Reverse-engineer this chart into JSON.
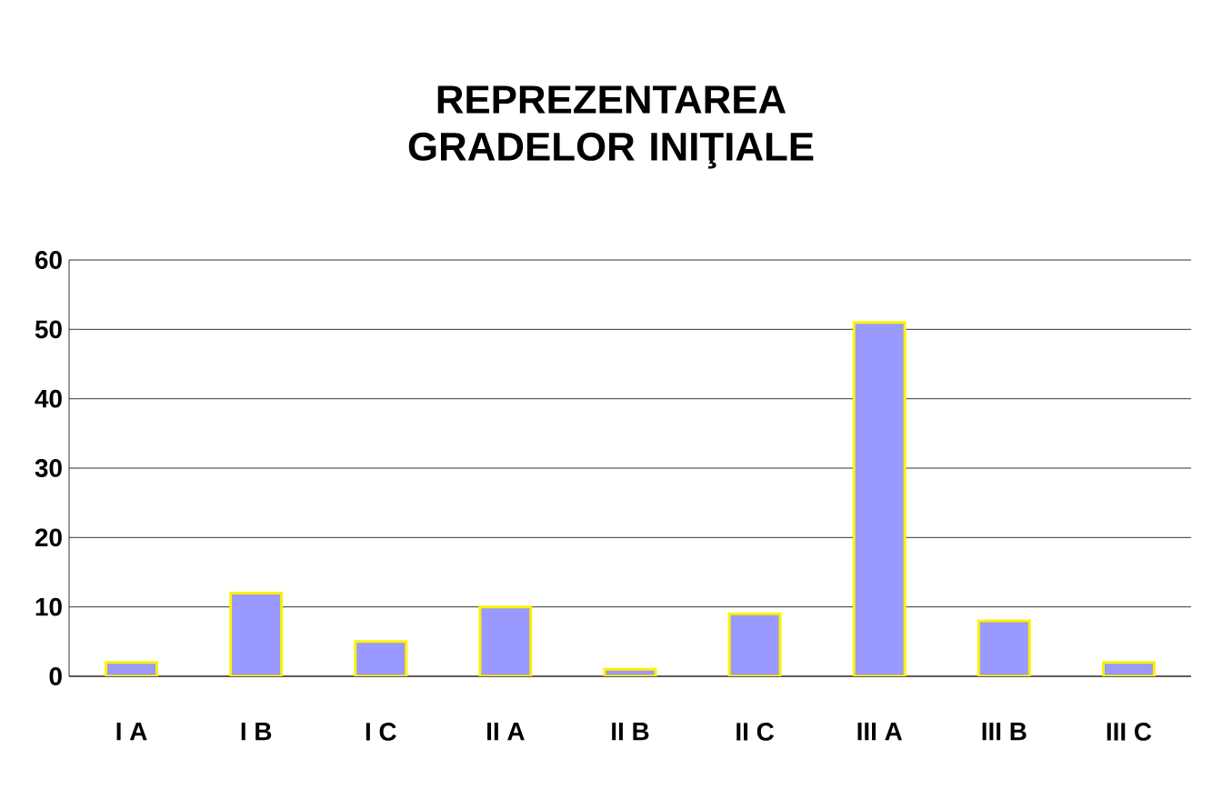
{
  "chart_data": {
    "type": "bar",
    "title": "REPREZENTAREA GRADELOR INIŢIALE",
    "categories": [
      "I A",
      "I B",
      "I C",
      "II A",
      "II B",
      "II C",
      "III A",
      "III B",
      "III C"
    ],
    "values": [
      2,
      12,
      5,
      10,
      1,
      9,
      51,
      8,
      2
    ],
    "color": "#9999ff",
    "ylim": [
      0,
      60
    ],
    "yticks": [
      0,
      10,
      20,
      30,
      40,
      50,
      60
    ],
    "grid": "y"
  }
}
